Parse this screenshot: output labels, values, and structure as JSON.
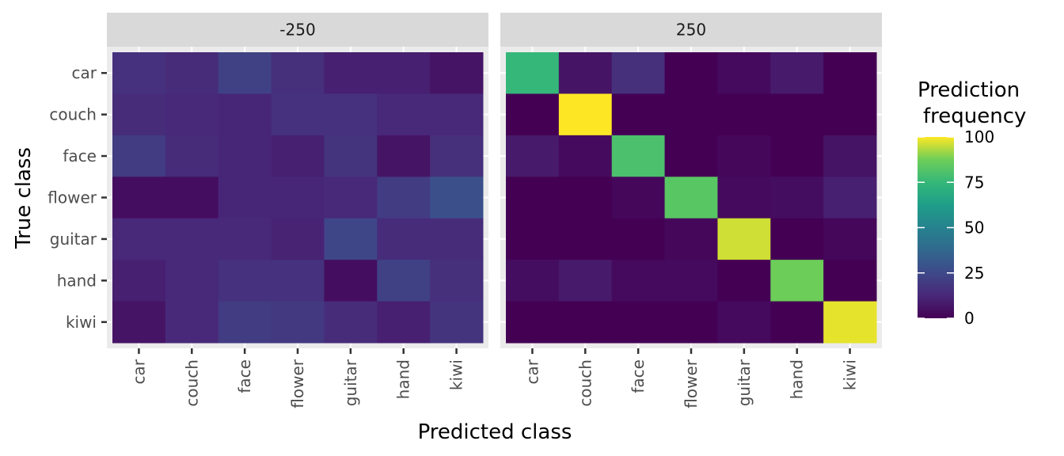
{
  "chart_data": {
    "type": "heatmap",
    "xlabel": "Predicted class",
    "ylabel": "True class",
    "categories_x": [
      "car",
      "couch",
      "face",
      "flower",
      "guitar",
      "hand",
      "kiwi"
    ],
    "categories_y": [
      "car",
      "couch",
      "face",
      "flower",
      "guitar",
      "hand",
      "kiwi"
    ],
    "panels": [
      {
        "label": "-250",
        "values": [
          [
            16,
            14,
            22,
            15,
            10,
            10,
            6
          ],
          [
            14,
            13,
            12,
            16,
            16,
            13,
            13
          ],
          [
            20,
            14,
            12,
            10,
            17,
            6,
            15
          ],
          [
            4,
            4,
            12,
            12,
            13,
            20,
            28
          ],
          [
            13,
            13,
            13,
            11,
            24,
            14,
            14
          ],
          [
            10,
            13,
            16,
            16,
            4,
            22,
            15
          ],
          [
            6,
            13,
            20,
            19,
            14,
            10,
            17
          ]
        ]
      },
      {
        "label": "250",
        "values": [
          [
            75,
            6,
            15,
            0,
            3,
            8,
            0
          ],
          [
            0,
            100,
            0,
            0,
            0,
            0,
            0
          ],
          [
            8,
            3,
            80,
            0,
            2,
            0,
            6
          ],
          [
            0,
            0,
            2,
            83,
            3,
            4,
            10
          ],
          [
            0,
            0,
            0,
            2,
            96,
            0,
            2
          ],
          [
            4,
            8,
            3,
            3,
            0,
            87,
            0
          ],
          [
            0,
            0,
            0,
            0,
            3,
            0,
            98
          ]
        ]
      }
    ],
    "legend": {
      "title_lines": [
        "Prediction",
        "frequency"
      ],
      "ticks": [
        0,
        25,
        50,
        75,
        100
      ],
      "range": [
        0,
        100
      ],
      "colormap": "viridis",
      "placement": "right"
    },
    "grid": true
  }
}
